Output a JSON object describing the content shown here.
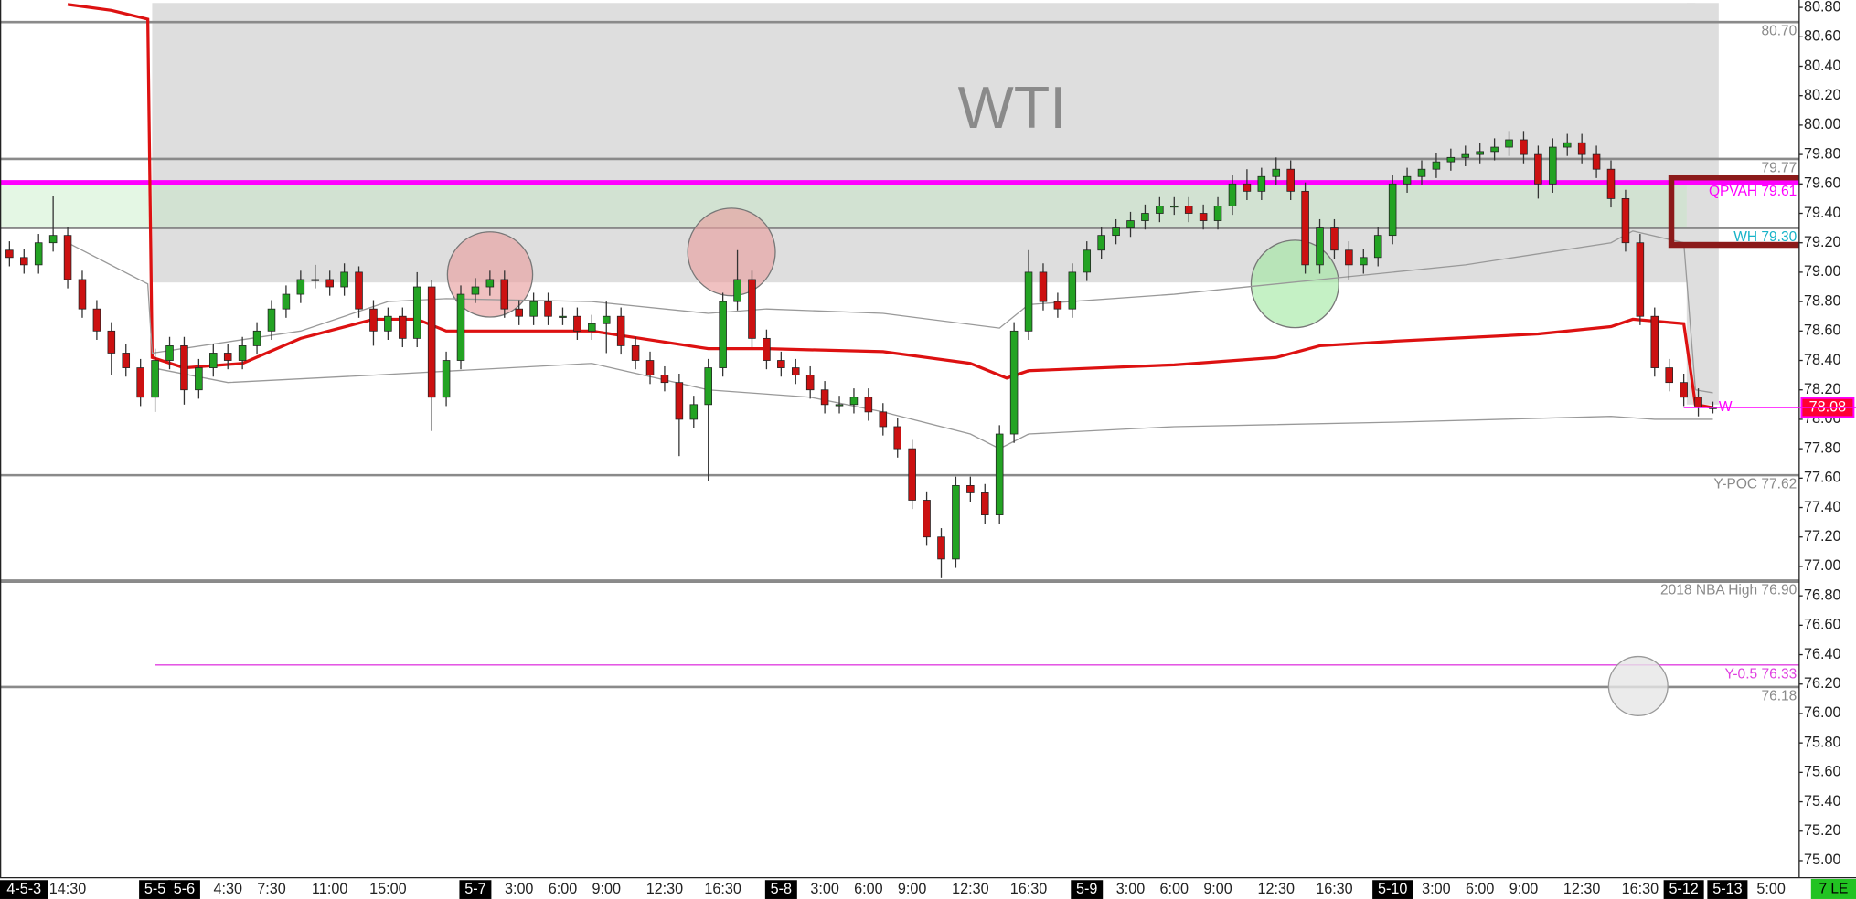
{
  "chart_data": {
    "type": "candlestick",
    "title": "WTI",
    "categories": [
      null,
      "4-5-3",
      null,
      null,
      "14:30",
      null,
      null,
      null,
      null,
      null,
      "5-5",
      null,
      "5-6",
      null,
      null,
      "4:30",
      null,
      null,
      "7:30",
      null,
      null,
      null,
      "11:00",
      null,
      null,
      null,
      "15:00",
      null,
      null,
      null,
      null,
      null,
      "5-7",
      null,
      null,
      "3:00",
      null,
      null,
      "6:00",
      null,
      null,
      "9:00",
      null,
      null,
      null,
      "12:30",
      null,
      null,
      null,
      "16:30",
      null,
      null,
      null,
      "5-8",
      null,
      null,
      "3:00",
      null,
      null,
      "6:00",
      null,
      null,
      "9:00",
      null,
      null,
      null,
      "12:30",
      null,
      null,
      null,
      "16:30",
      null,
      null,
      null,
      "5-9",
      null,
      null,
      "3:00",
      null,
      null,
      "6:00",
      null,
      null,
      "9:00",
      null,
      null,
      null,
      "12:30",
      null,
      null,
      null,
      "16:30",
      null,
      null,
      null,
      "5-10",
      null,
      null,
      "3:00",
      null,
      null,
      "6:00",
      null,
      null,
      "9:00",
      null,
      null,
      null,
      "12:30",
      null,
      null,
      null,
      "16:30",
      null,
      null,
      "5-12",
      null,
      null,
      "5-13",
      null,
      null,
      "5:00"
    ],
    "up_color": "#23a323",
    "down_color": "#cc1111",
    "open": [
      79.15,
      79.1,
      79.05,
      79.2,
      79.25,
      78.95,
      78.75,
      78.6,
      78.45,
      78.35,
      78.15,
      78.4,
      78.5,
      78.2,
      78.35,
      78.45,
      78.4,
      78.5,
      78.6,
      78.75,
      78.85,
      78.95,
      78.95,
      78.9,
      79,
      78.75,
      78.6,
      78.7,
      78.55,
      78.9,
      78.15,
      78.4,
      78.85,
      78.9,
      78.95,
      78.75,
      78.7,
      78.8,
      78.7,
      78.7,
      78.6,
      78.65,
      78.7,
      78.5,
      78.4,
      78.3,
      78.25,
      78,
      78.1,
      78.35,
      78.8,
      78.95,
      78.55,
      78.4,
      78.35,
      78.3,
      78.2,
      78.1,
      78.1,
      78.15,
      78.05,
      77.95,
      77.8,
      77.45,
      77.2,
      77.05,
      77.55,
      77.5,
      77.35,
      77.9,
      78.6,
      79,
      78.8,
      78.75,
      79,
      79.15,
      79.25,
      79.3,
      79.35,
      79.4,
      79.45,
      79.45,
      79.4,
      79.35,
      79.45,
      79.6,
      79.55,
      79.65,
      79.7,
      79.55,
      79.05,
      79.3,
      79.15,
      79.05,
      79.1,
      79.25,
      79.6,
      79.65,
      79.7,
      79.75,
      79.78,
      79.8,
      79.82,
      79.85,
      79.9,
      79.8,
      79.6,
      79.85,
      79.88,
      79.8,
      79.7,
      79.5,
      79.2,
      78.7,
      78.35,
      78.25,
      78.15,
      78.08,
      null,
      null,
      null,
      null
    ],
    "high": [
      79.21,
      79.16,
      79.26,
      79.52,
      79.31,
      79.01,
      78.81,
      78.66,
      78.51,
      78.41,
      78.48,
      78.56,
      78.56,
      78.41,
      78.51,
      78.51,
      78.56,
      78.66,
      78.81,
      78.91,
      79.01,
      79.05,
      79.01,
      79.06,
      79.04,
      78.81,
      78.76,
      78.76,
      79,
      78.95,
      78.46,
      78.91,
      78.96,
      79.01,
      79.01,
      78.81,
      78.86,
      78.86,
      78.76,
      78.76,
      78.71,
      78.8,
      78.76,
      78.56,
      78.46,
      78.36,
      78.31,
      78.16,
      78.41,
      78.86,
      79.15,
      79.01,
      78.61,
      78.46,
      78.41,
      78.36,
      78.26,
      78.16,
      78.21,
      78.21,
      78.11,
      78.01,
      77.86,
      77.51,
      77.26,
      77.61,
      77.61,
      77.56,
      77.96,
      78.66,
      79.15,
      79.06,
      78.86,
      79.06,
      79.21,
      79.31,
      79.36,
      79.41,
      79.46,
      79.51,
      79.51,
      79.51,
      79.46,
      79.51,
      79.66,
      79.7,
      79.71,
      79.78,
      79.76,
      79.61,
      79.36,
      79.36,
      79.21,
      79.16,
      79.31,
      79.66,
      79.71,
      79.76,
      79.81,
      79.84,
      79.86,
      79.88,
      79.91,
      79.96,
      79.96,
      79.86,
      79.91,
      79.94,
      79.94,
      79.86,
      79.76,
      79.56,
      79.26,
      78.76,
      78.41,
      78.31,
      78.21,
      78.12,
      null,
      null,
      null,
      null
    ],
    "low": [
      79.04,
      78.99,
      78.99,
      79.14,
      78.89,
      78.69,
      78.54,
      78.3,
      78.29,
      78.09,
      78.05,
      78.34,
      78.1,
      78.14,
      78.29,
      78.34,
      78.34,
      78.44,
      78.54,
      78.69,
      78.79,
      78.89,
      78.84,
      78.84,
      78.69,
      78.5,
      78.54,
      78.49,
      78.49,
      77.92,
      78.09,
      78.34,
      78.79,
      78.84,
      78.69,
      78.64,
      78.64,
      78.64,
      78.64,
      78.54,
      78.54,
      78.45,
      78.44,
      78.34,
      78.24,
      78.19,
      77.75,
      77.94,
      77.58,
      78.29,
      78.74,
      78.49,
      78.34,
      78.29,
      78.24,
      78.14,
      78.04,
      78.04,
      78.04,
      77.99,
      77.89,
      77.74,
      77.39,
      77.14,
      76.92,
      76.99,
      77.44,
      77.29,
      77.29,
      77.84,
      78.54,
      78.74,
      78.69,
      78.69,
      78.94,
      79.09,
      79.19,
      79.24,
      79.29,
      79.34,
      79.39,
      79.34,
      79.29,
      79.29,
      79.39,
      79.49,
      79.49,
      79.59,
      79.49,
      78.99,
      78.99,
      79.09,
      78.95,
      78.99,
      79.04,
      79.19,
      79.54,
      79.59,
      79.64,
      79.69,
      79.72,
      79.74,
      79.76,
      79.79,
      79.74,
      79.5,
      79.54,
      79.79,
      79.74,
      79.64,
      79.44,
      79.14,
      78.64,
      78.29,
      78.19,
      78.09,
      78.02,
      78.04,
      null,
      null,
      null,
      null
    ],
    "close": [
      79.1,
      79.05,
      79.2,
      79.25,
      78.95,
      78.75,
      78.6,
      78.45,
      78.35,
      78.15,
      78.4,
      78.5,
      78.2,
      78.35,
      78.45,
      78.4,
      78.5,
      78.6,
      78.75,
      78.85,
      78.95,
      78.95,
      78.9,
      79,
      78.75,
      78.6,
      78.7,
      78.55,
      78.9,
      78.15,
      78.4,
      78.85,
      78.9,
      78.95,
      78.75,
      78.7,
      78.8,
      78.7,
      78.7,
      78.6,
      78.65,
      78.7,
      78.5,
      78.4,
      78.3,
      78.25,
      78,
      78.1,
      78.35,
      78.8,
      78.95,
      78.55,
      78.4,
      78.35,
      78.3,
      78.2,
      78.1,
      78.1,
      78.15,
      78.05,
      77.95,
      77.8,
      77.45,
      77.2,
      77.05,
      77.55,
      77.5,
      77.35,
      77.9,
      78.6,
      79,
      78.8,
      78.75,
      79,
      79.15,
      79.25,
      79.3,
      79.35,
      79.4,
      79.45,
      79.45,
      79.4,
      79.35,
      79.45,
      79.6,
      79.55,
      79.65,
      79.7,
      79.55,
      79.05,
      79.3,
      79.15,
      79.05,
      79.1,
      79.25,
      79.6,
      79.65,
      79.7,
      79.75,
      79.78,
      79.8,
      79.82,
      79.85,
      79.9,
      79.8,
      79.6,
      79.85,
      79.88,
      79.8,
      79.7,
      79.5,
      79.2,
      78.7,
      78.35,
      78.25,
      78.15,
      78.08,
      78.08,
      null,
      null,
      null,
      null
    ],
    "lines": [
      {
        "color": "#dd1111",
        "width": 2.5,
        "x": [
          4,
          7,
          9.5,
          9.8,
          12,
          16,
          20,
          25,
          28,
          30,
          40,
          48,
          52,
          60,
          66,
          68.5,
          70,
          80,
          87,
          90,
          95,
          105,
          110,
          111.5,
          115,
          115.8,
          117
        ],
        "values": [
          80.82,
          80.78,
          80.72,
          78.42,
          78.35,
          78.38,
          78.55,
          78.68,
          78.68,
          78.6,
          78.6,
          78.48,
          78.48,
          78.46,
          78.38,
          78.28,
          78.33,
          78.37,
          78.42,
          78.5,
          78.53,
          78.58,
          78.63,
          78.68,
          78.65,
          78.1,
          78.08
        ]
      },
      {
        "color": "#999999",
        "width": 1,
        "x": [
          4,
          9.5,
          9.8,
          20,
          26,
          30,
          40,
          48,
          52,
          60,
          68,
          70,
          80,
          90,
          100,
          110,
          111.5,
          115,
          115.8,
          117
        ],
        "values": [
          79.2,
          78.92,
          78.45,
          78.6,
          78.8,
          78.82,
          78.8,
          78.72,
          78.75,
          78.72,
          78.62,
          78.78,
          78.85,
          78.95,
          79.05,
          79.2,
          79.28,
          79.2,
          78.2,
          78.18
        ]
      },
      {
        "color": "#999999",
        "width": 1,
        "x": [
          9.8,
          15,
          25,
          40,
          48,
          55,
          60,
          66,
          68,
          70,
          80,
          95,
          110,
          113,
          117
        ],
        "values": [
          78.35,
          78.25,
          78.3,
          78.38,
          78.2,
          78.15,
          78.05,
          77.9,
          77.8,
          77.9,
          77.95,
          77.98,
          78.02,
          78,
          78
        ]
      }
    ],
    "zones": [
      {
        "x": [
          9.8,
          115.8
        ],
        "ylim": [
          78.93,
          80.83
        ],
        "color": "#dedede"
      },
      {
        "x": [
          -0.7,
          9.8
        ],
        "ylim": [
          79.3,
          79.6
        ],
        "color": "#e4f7e4"
      },
      {
        "x": [
          9.8,
          115.8
        ],
        "ylim": [
          79.3,
          79.6
        ],
        "color": "#d2e2d2"
      },
      {
        "x": [
          115.2,
          117.4
        ],
        "ylim": [
          78.1,
          80.83
        ],
        "color": "#dedede"
      }
    ],
    "levels": [
      {
        "value": 80.7,
        "label": "80.70",
        "color": "#8a8a8a",
        "label_color": "#8a8a8a",
        "width": 2
      },
      {
        "value": 79.77,
        "label": "79.77",
        "color": "#8a8a8a",
        "label_color": "#8a8a8a",
        "width": 2
      },
      {
        "value": 79.61,
        "label": "QPVAH  79.61",
        "color": "#ff00ff",
        "label_color": "#ff00ff",
        "width": 4
      },
      {
        "value": 79.3,
        "label": "WH 79.30",
        "color": "#8a8a8a",
        "label_color": "#17b3c8",
        "width": 2
      },
      {
        "value": 77.62,
        "label": "Y-POC  77.62",
        "color": "#8a8a8a",
        "label_color": "#8a8a8a",
        "width": 2
      },
      {
        "value": 76.9,
        "label": "2018 NBA High  76.90",
        "color": "#8a8a8a",
        "label_color": "#8a8a8a",
        "width": 3
      },
      {
        "value": 76.33,
        "label": "Y-0.5  76.33",
        "color": "#e040e0",
        "label_color": "#e040e0",
        "width": 1,
        "x_start": 10
      },
      {
        "value": 76.18,
        "label": "76.18",
        "color": "#8a8a8a",
        "label_color": "#8a8a8a",
        "width": 2
      }
    ],
    "last": {
      "value": 78.08,
      "color": "#ff0033",
      "tag": "W",
      "tag_color": "#ff00ff"
    },
    "badge": "7 LE",
    "ylim": [
      74.9,
      80.85
    ],
    "yticks": [
      {
        "value": 75,
        "label": "75.00"
      },
      {
        "value": 75.2,
        "label": "75.20"
      },
      {
        "value": 75.4,
        "label": "75.40"
      },
      {
        "value": 75.6,
        "label": "75.60"
      },
      {
        "value": 75.8,
        "label": "75.80"
      },
      {
        "value": 76,
        "label": "76.00"
      },
      {
        "value": 76.2,
        "label": "76.20"
      },
      {
        "value": 76.4,
        "label": "76.40"
      },
      {
        "value": 76.6,
        "label": "76.60"
      },
      {
        "value": 76.8,
        "label": "76.80"
      },
      {
        "value": 77,
        "label": "77.00"
      },
      {
        "value": 77.2,
        "label": "77.20"
      },
      {
        "value": 77.4,
        "label": "77.40"
      },
      {
        "value": 77.6,
        "label": "77.60"
      },
      {
        "value": 77.8,
        "label": "77.80"
      },
      {
        "value": 78,
        "label": "78.00"
      },
      {
        "value": 78.2,
        "label": "78.20"
      },
      {
        "value": 78.4,
        "label": "78.40"
      },
      {
        "value": 78.6,
        "label": "78.60"
      },
      {
        "value": 78.8,
        "label": "78.80"
      },
      {
        "value": 79,
        "label": "79.00"
      },
      {
        "value": 79.2,
        "label": "79.20"
      },
      {
        "value": 79.4,
        "label": "79.40"
      },
      {
        "value": 79.6,
        "label": "79.60"
      },
      {
        "value": 79.8,
        "label": "79.80"
      },
      {
        "value": 80,
        "label": "80.00"
      },
      {
        "value": 80.2,
        "label": "80.20"
      },
      {
        "value": 80.4,
        "label": "80.40"
      },
      {
        "value": 80.6,
        "label": "80.60"
      },
      {
        "value": 80.8,
        "label": "80.80"
      }
    ]
  }
}
